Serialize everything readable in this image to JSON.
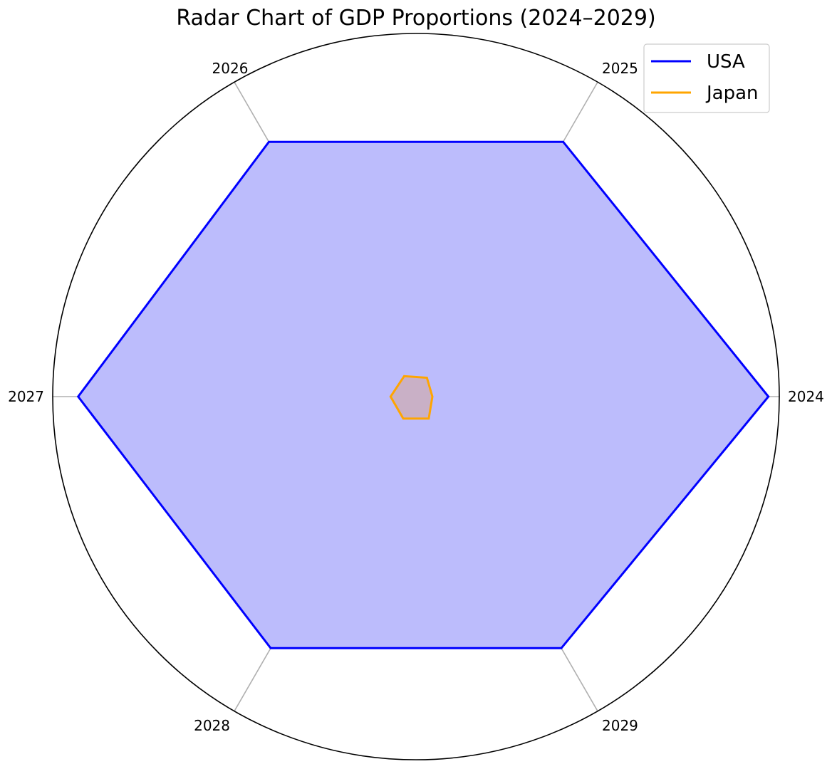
{
  "chart_data": {
    "type": "radar",
    "title": "Radar Chart of GDP Proportions (2024–2029)",
    "categories": [
      "2024",
      "2025",
      "2026",
      "2027",
      "2028",
      "2029"
    ],
    "rmax": 1.0,
    "grid": true,
    "legend_position": "top-right",
    "series": [
      {
        "name": "USA",
        "color": "#0000ff",
        "fill": "#bcbcfc",
        "values": [
          0.97,
          0.81,
          0.81,
          0.93,
          0.8,
          0.8
        ]
      },
      {
        "name": "Japan",
        "color": "#ffa500",
        "fill": "#c9b0c6",
        "values": [
          0.045,
          0.06,
          0.065,
          0.07,
          0.07,
          0.07
        ]
      }
    ]
  }
}
